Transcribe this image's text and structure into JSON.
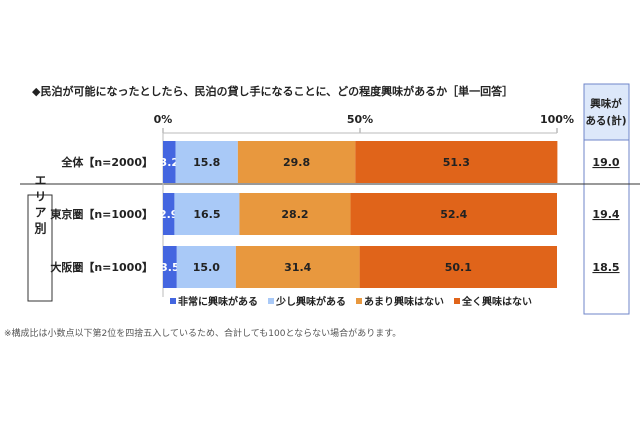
{
  "chart_data": {
    "type": "bar",
    "stacked": true,
    "orientation": "horizontal",
    "title": "◆民泊が可能になったとしたら、民泊の貸し手になることに、どの程度興味があるか［単一回答］",
    "categories": [
      "全体【n=2000】",
      "東京圏【n=1000】",
      "大阪圏【n=1000】"
    ],
    "group_label": "エリア別",
    "series": [
      {
        "name": "非常に興味がある",
        "color": "#4466e0",
        "values": [
          3.2,
          2.9,
          3.5
        ]
      },
      {
        "name": "少し興味がある",
        "color": "#a9c9f7",
        "values": [
          15.8,
          16.5,
          15.0
        ]
      },
      {
        "name": "あまり興味はない",
        "color": "#e8983e",
        "values": [
          29.8,
          28.2,
          31.4
        ]
      },
      {
        "name": "全く興味はない",
        "color": "#e0641a",
        "values": [
          51.3,
          52.4,
          50.1
        ]
      }
    ],
    "xticks": [
      "0%",
      "50%",
      "100%"
    ],
    "xlim": [
      0,
      100
    ],
    "legend": "bottom",
    "side_column": {
      "header": [
        "興味が",
        "ある(計)"
      ],
      "values": [
        "19.0",
        "19.4",
        "18.5"
      ]
    },
    "footnote": "※構成比は小数点以下第2位を四捨五入しているため、合計しても100とならない場合があります。"
  }
}
